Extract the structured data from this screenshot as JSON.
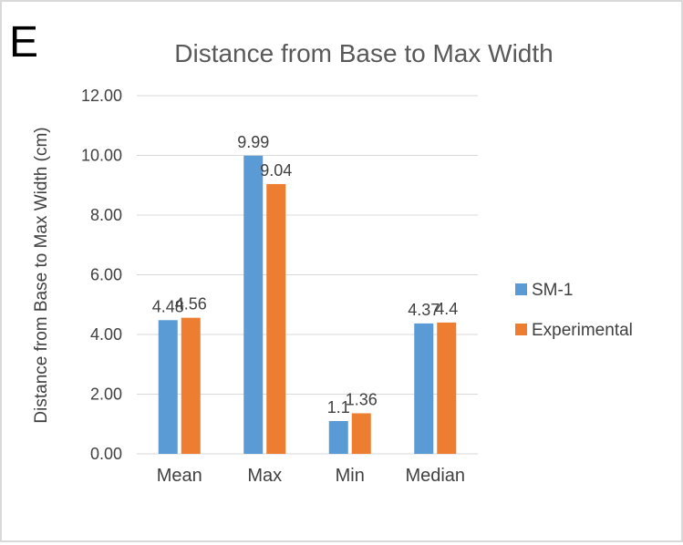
{
  "panel_letter": "E",
  "colors": {
    "sm1": "#5b9bd5",
    "experimental": "#ed7d31",
    "grid": "#d9d9d9",
    "text": "#404040",
    "title": "#595959"
  },
  "chart_data": {
    "type": "bar",
    "title": "Distance from Base to Max Width",
    "xlabel": "",
    "ylabel": "Distance from Base to Max Width (cm)",
    "categories": [
      "Mean",
      "Max",
      "Min",
      "Median"
    ],
    "series": [
      {
        "name": "SM-1",
        "values": [
          4.48,
          9.99,
          1.1,
          4.37
        ],
        "labels": [
          "4.48",
          "9.99",
          "1.1",
          "4.37"
        ]
      },
      {
        "name": "Experimental",
        "values": [
          4.56,
          9.04,
          1.36,
          4.4
        ],
        "labels": [
          "4.56",
          "9.04",
          "1.36",
          "4.4"
        ]
      }
    ],
    "ylim": [
      0,
      12
    ],
    "yticks": [
      "0.00",
      "2.00",
      "4.00",
      "6.00",
      "8.00",
      "10.00",
      "12.00"
    ],
    "grid": true,
    "legend_position": "right"
  }
}
